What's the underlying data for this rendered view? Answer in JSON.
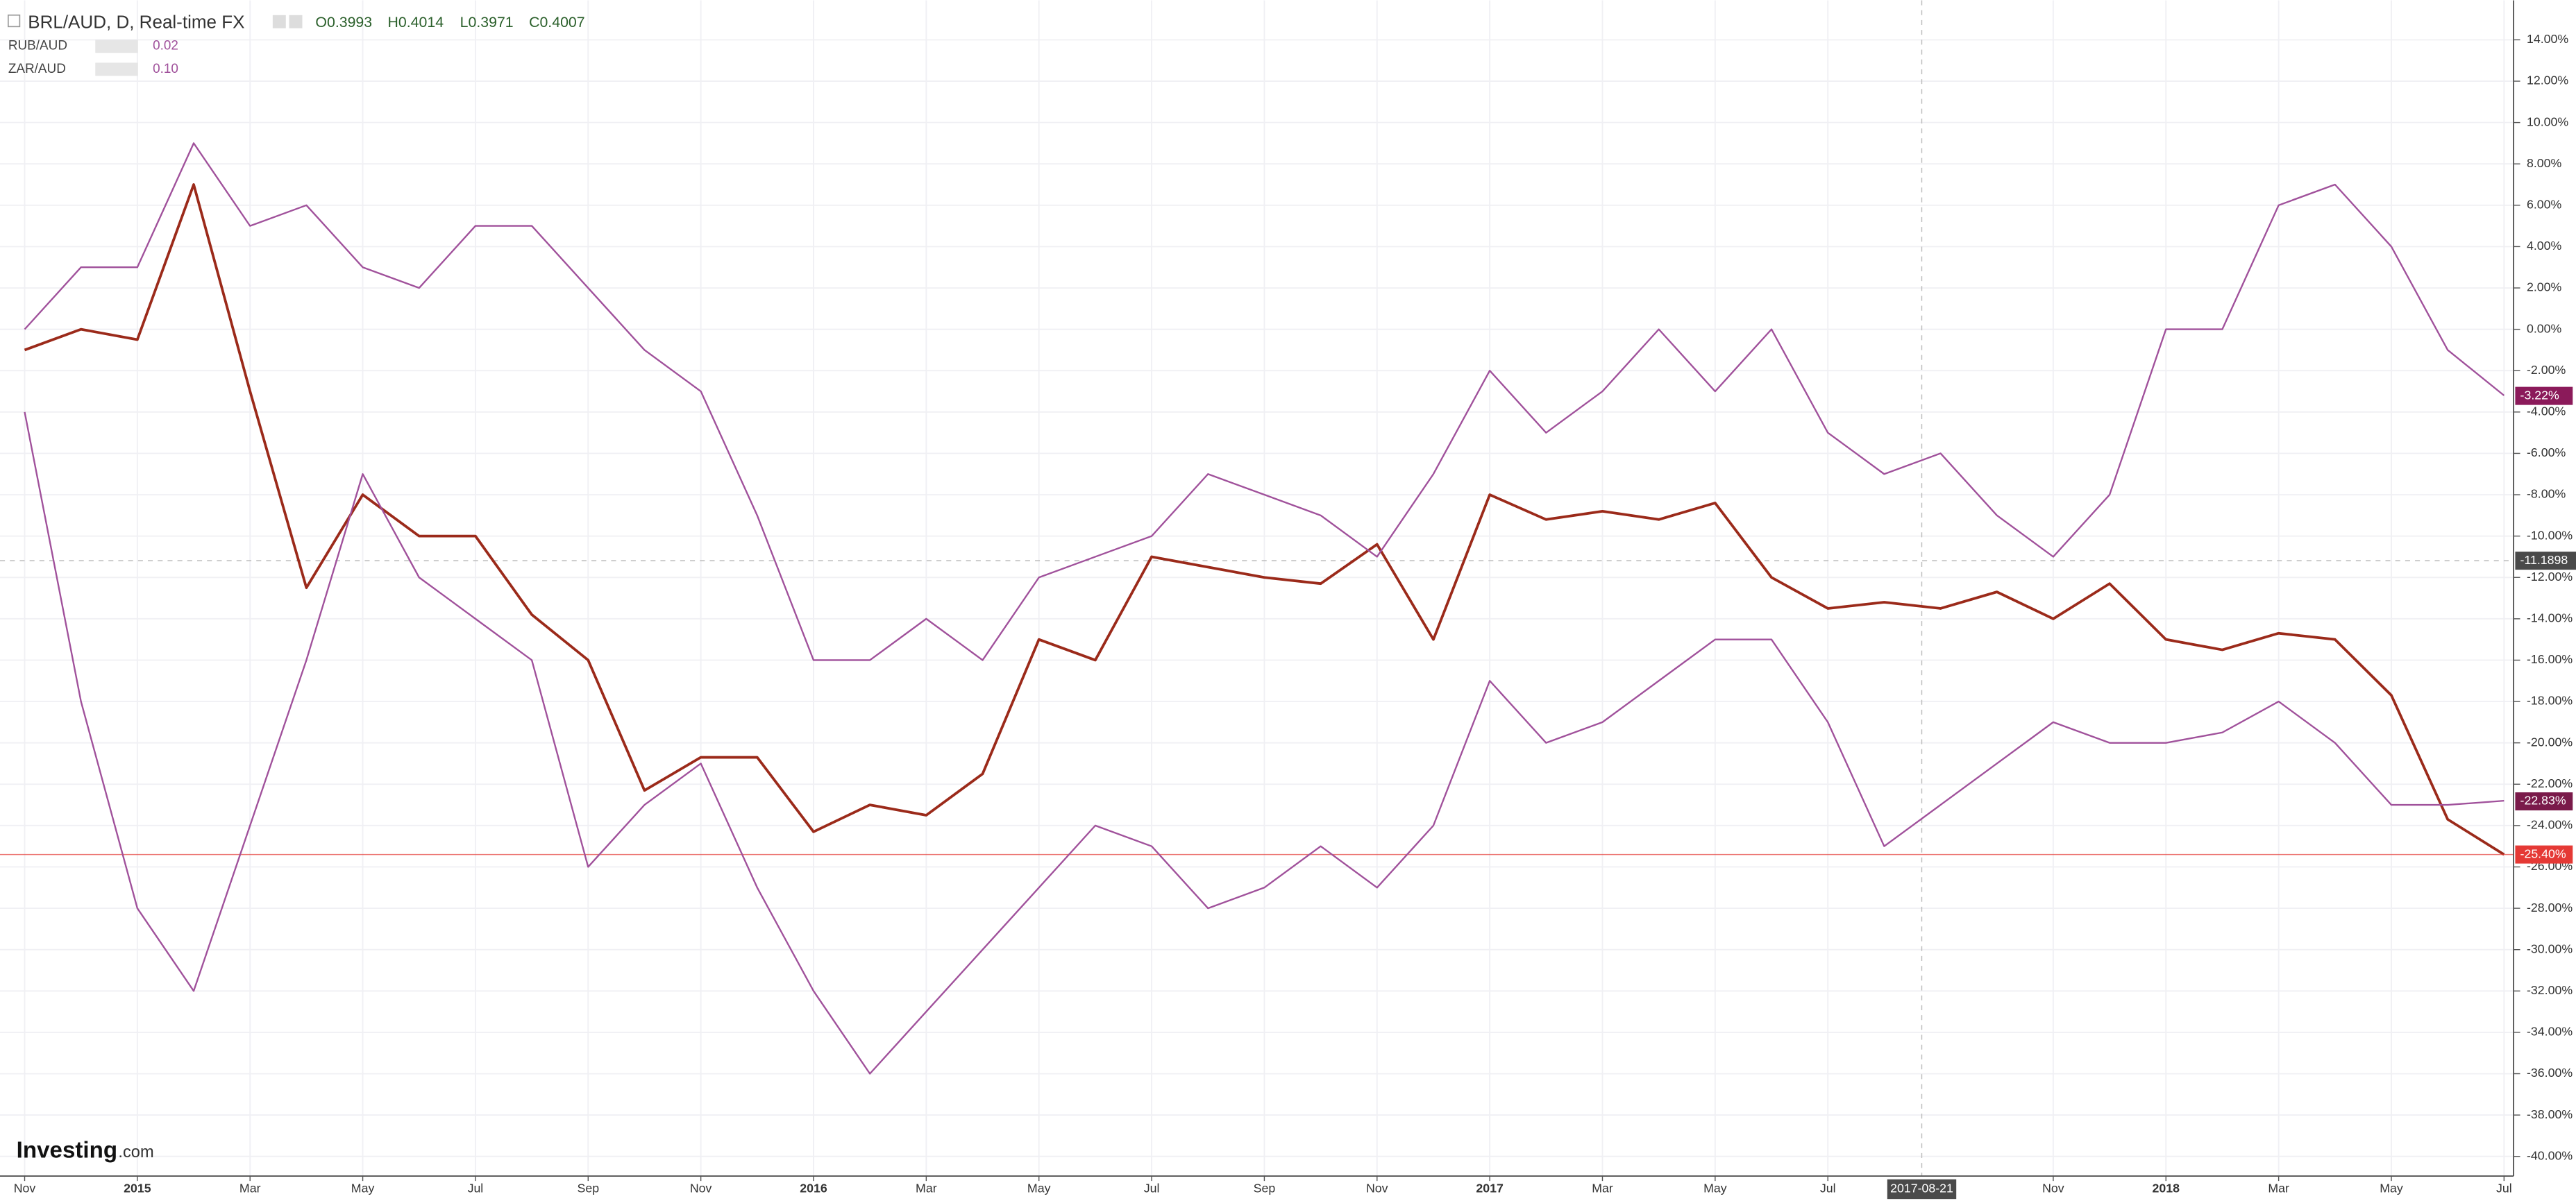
{
  "chart_data": {
    "type": "line",
    "header": {
      "symbol": "BRL/AUD, D, Real-time FX",
      "open": "O0.3993",
      "high": "H0.4014",
      "low": "L0.3971",
      "close": "C0.4007"
    },
    "logo": {
      "brand": "Investing",
      "suffix": ".com"
    },
    "x": [
      "2014-11",
      "2014-12",
      "2015-01",
      "2015-02",
      "2015-03",
      "2015-04",
      "2015-05",
      "2015-06",
      "2015-07",
      "2015-08",
      "2015-09",
      "2015-10",
      "2015-11",
      "2015-12",
      "2016-01",
      "2016-02",
      "2016-03",
      "2016-04",
      "2016-05",
      "2016-06",
      "2016-07",
      "2016-08",
      "2016-09",
      "2016-10",
      "2016-11",
      "2016-12",
      "2017-01",
      "2017-02",
      "2017-03",
      "2017-04",
      "2017-05",
      "2017-06",
      "2017-07",
      "2017-08",
      "2017-09",
      "2017-10",
      "2017-11",
      "2017-12",
      "2018-01",
      "2018-02",
      "2018-03",
      "2018-04",
      "2018-05",
      "2018-06",
      "2018-07"
    ],
    "series": [
      {
        "name": "BRL/AUD",
        "color": "#9b2a1a",
        "values": [
          -1,
          0,
          -0.5,
          7,
          -3,
          -12.5,
          -8,
          -10,
          -10,
          -13.8,
          -16,
          -22.3,
          -20.7,
          -20.7,
          -24.3,
          -23,
          -23.5,
          -21.5,
          -15,
          -16,
          -11,
          -11.5,
          -12,
          -12.3,
          -10.4,
          -15,
          -8,
          -9.2,
          -8.8,
          -9.2,
          -8.4,
          -12,
          -13.5,
          -13.2,
          -13.5,
          -12.7,
          -14,
          -12.3,
          -15,
          -15.5,
          -14.7,
          -15,
          -17.7,
          -23.7,
          -25.4
        ],
        "last_price": {
          "value": -25.4,
          "label": "-25.40%"
        },
        "tag_color": "#e53935"
      },
      {
        "name": "RUB/AUD",
        "legend_value": "0.02",
        "color": "#a0519b",
        "values": [
          -4,
          -18,
          -28,
          -32,
          -24,
          -16,
          -7,
          -12,
          -14,
          -16,
          -26,
          -23,
          -21,
          -27,
          -32,
          -36,
          -33,
          -30,
          -27,
          -24,
          -25,
          -28,
          -27,
          -25,
          -27,
          -24,
          -17,
          -20,
          -19,
          -17,
          -15,
          -15,
          -19,
          -25,
          -23,
          -21,
          -19,
          -20,
          -20,
          -19.5,
          -18,
          -20,
          -23,
          -23,
          -22.8
        ],
        "last_price": {
          "value": -22.83,
          "label": "-22.83%"
        },
        "tag_color": "#7a1a4a"
      },
      {
        "name": "ZAR/AUD",
        "legend_value": "0.10",
        "color": "#a0519b",
        "values": [
          0,
          3,
          3,
          9,
          5,
          6,
          3,
          2,
          5,
          5,
          2,
          -1,
          -3,
          -9,
          -16,
          -16,
          -14,
          -16,
          -12,
          -11,
          -10,
          -7,
          -8,
          -9,
          -11,
          -7,
          -2,
          -5,
          -3,
          0,
          -3,
          0,
          -5,
          -7,
          -6,
          -9,
          -11,
          -8,
          0,
          0,
          6,
          7,
          4,
          -1,
          -3.2
        ],
        "last_price": {
          "value": -3.22,
          "label": "-3.22%"
        },
        "tag_color": "#8b1a5a"
      }
    ],
    "ylim": [
      -40.95,
      15.91
    ],
    "yticks": [
      {
        "value": 14,
        "label": "14.00%"
      },
      {
        "value": 12,
        "label": "12.00%"
      },
      {
        "value": 10,
        "label": "10.00%"
      },
      {
        "value": 8,
        "label": "8.00%"
      },
      {
        "value": 6,
        "label": "6.00%"
      },
      {
        "value": 4,
        "label": "4.00%"
      },
      {
        "value": 2,
        "label": "2.00%"
      },
      {
        "value": 0,
        "label": "0.00%"
      },
      {
        "value": -2,
        "label": "-2.00%"
      },
      {
        "value": -4,
        "label": "-4.00%"
      },
      {
        "value": -6,
        "label": "-6.00%"
      },
      {
        "value": -8,
        "label": "-8.00%"
      },
      {
        "value": -10,
        "label": "-10.00%"
      },
      {
        "value": -12,
        "label": "-12.00%"
      },
      {
        "value": -14,
        "label": "-14.00%"
      },
      {
        "value": -16,
        "label": "-16.00%"
      },
      {
        "value": -18,
        "label": "-18.00%"
      },
      {
        "value": -20,
        "label": "-20.00%"
      },
      {
        "value": -22,
        "label": "-22.00%"
      },
      {
        "value": -24,
        "label": "-24.00%"
      },
      {
        "value": -26,
        "label": "-26.00%"
      },
      {
        "value": -28,
        "label": "-28.00%"
      },
      {
        "value": -30,
        "label": "-30.00%"
      },
      {
        "value": -32,
        "label": "-32.00%"
      },
      {
        "value": -34,
        "label": "-34.00%"
      },
      {
        "value": -36,
        "label": "-36.00%"
      },
      {
        "value": -38,
        "label": "-38.00%"
      },
      {
        "value": -40,
        "label": "-40.00%"
      }
    ],
    "xticks": [
      {
        "value": "2014-11",
        "label": "Nov"
      },
      {
        "value": "2015-01",
        "label": "2015"
      },
      {
        "value": "2015-03",
        "label": "Mar"
      },
      {
        "value": "2015-05",
        "label": "May"
      },
      {
        "value": "2015-07",
        "label": "Jul"
      },
      {
        "value": "2015-09",
        "label": "Sep"
      },
      {
        "value": "2015-11",
        "label": "Nov"
      },
      {
        "value": "2016-01",
        "label": "2016"
      },
      {
        "value": "2016-03",
        "label": "Mar"
      },
      {
        "value": "2016-05",
        "label": "May"
      },
      {
        "value": "2016-07",
        "label": "Jul"
      },
      {
        "value": "2016-09",
        "label": "Sep"
      },
      {
        "value": "2016-11",
        "label": "Nov"
      },
      {
        "value": "2017-01",
        "label": "2017"
      },
      {
        "value": "2017-03",
        "label": "Mar"
      },
      {
        "value": "2017-05",
        "label": "May"
      },
      {
        "value": "2017-07",
        "label": "Jul"
      },
      {
        "value": "2017-11",
        "label": "Nov"
      },
      {
        "value": "2018-01",
        "label": "2018"
      },
      {
        "value": "2018-03",
        "label": "Mar"
      },
      {
        "value": "2018-05",
        "label": "May"
      },
      {
        "value": "2018-07",
        "label": "Jul"
      }
    ],
    "crosshair": {
      "x": "2017-08-21",
      "y": -11.1898
    },
    "grid": true
  }
}
